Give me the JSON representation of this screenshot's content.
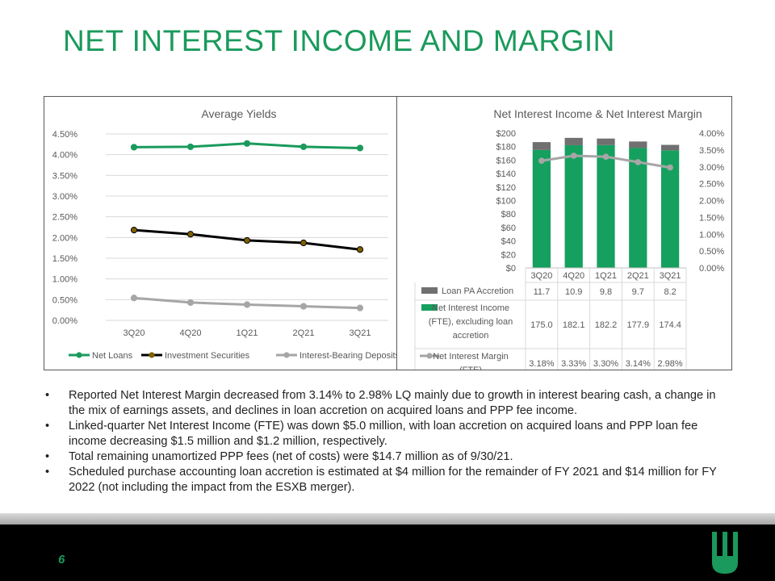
{
  "page": {
    "title": "NET INTEREST INCOME AND MARGIN",
    "page_number": "6"
  },
  "colors": {
    "title_green": "#1a9a5c",
    "net_loans": "#1a9a5c",
    "investment_securities": "#000000",
    "investment_marker": "#7f6000",
    "deposits": "#a6a6a6",
    "bar_green": "#16a05f",
    "bar_gray": "#707070",
    "margin_line": "#a6a6a6"
  },
  "bullets": [
    "Reported Net Interest Margin decreased from 3.14% to 2.98% LQ mainly due to growth in interest bearing cash, a change in the mix of earnings assets, and declines in loan accretion on acquired loans and PPP fee income.",
    "Linked-quarter Net Interest Income (FTE) was down $5.0 million, with loan accretion on acquired loans and PPP loan fee income decreasing $1.5 million and $1.2 million, respectively.",
    "Total remaining unamortized PPP fees (net of costs) were $14.7 million as of 9/30/21.",
    "Scheduled purchase accounting loan accretion is estimated at $4 million for the remainder of FY 2021 and $14 million for FY 2022 (not including the impact from the ESXB merger)."
  ],
  "chart_data": [
    {
      "type": "line",
      "title": "Average Yields",
      "categories": [
        "3Q20",
        "4Q20",
        "1Q21",
        "2Q21",
        "3Q21"
      ],
      "y_ticks": [
        "0.00%",
        "0.50%",
        "1.00%",
        "1.50%",
        "2.00%",
        "2.50%",
        "3.00%",
        "3.50%",
        "4.00%",
        "4.50%"
      ],
      "ylim": [
        0,
        4.5
      ],
      "grid": true,
      "legend": "bottom",
      "series": [
        {
          "name": "Net Loans",
          "values": [
            4.18,
            4.19,
            4.27,
            4.19,
            4.16
          ],
          "color": "#1a9a5c",
          "marker": "#1a9a5c"
        },
        {
          "name": "Investment Securities",
          "values": [
            2.18,
            2.08,
            1.93,
            1.87,
            1.71
          ],
          "color": "#000000",
          "marker": "#7f6000"
        },
        {
          "name": "Interest-Bearing Deposits",
          "values": [
            0.54,
            0.43,
            0.38,
            0.34,
            0.3
          ],
          "color": "#a6a6a6",
          "marker": "#a6a6a6"
        }
      ]
    },
    {
      "type": "bar",
      "stacked": true,
      "title": "Net Interest Income & Net Interest Margin",
      "categories": [
        "3Q20",
        "4Q20",
        "1Q21",
        "2Q21",
        "3Q21"
      ],
      "y_ticks": [
        "$0",
        "$20",
        "$40",
        "$60",
        "$80",
        "$100",
        "$120",
        "$140",
        "$160",
        "$180",
        "$200"
      ],
      "ylim": [
        0,
        200
      ],
      "y2_ticks": [
        "0.00%",
        "0.50%",
        "1.00%",
        "1.50%",
        "2.00%",
        "2.50%",
        "3.00%",
        "3.50%",
        "4.00%"
      ],
      "y2lim": [
        0,
        4.0
      ],
      "legend": "data table",
      "series": [
        {
          "name": "Loan PA Accretion",
          "type": "bar",
          "values": [
            11.7,
            10.9,
            9.8,
            9.7,
            8.2
          ],
          "labels": [
            "11.7",
            "10.9",
            "9.8",
            "9.7",
            "8.2"
          ],
          "color": "#707070"
        },
        {
          "name": "Net Interest Income (FTE), excluding loan accretion",
          "name_lines": [
            "Net Interest Income",
            "(FTE), excluding loan",
            "accretion"
          ],
          "type": "bar",
          "values": [
            175.0,
            182.1,
            182.2,
            177.9,
            174.4
          ],
          "labels": [
            "175.0",
            "182.1",
            "182.2",
            "177.9",
            "174.4"
          ],
          "color": "#16a05f"
        },
        {
          "name": "Net Interest Margin (FTE)",
          "name_lines": [
            "Net Interest Margin",
            "(FTE)"
          ],
          "type": "line",
          "axis": "right",
          "values": [
            3.18,
            3.33,
            3.3,
            3.14,
            2.98
          ],
          "labels": [
            "3.18%",
            "3.33%",
            "3.30%",
            "3.14%",
            "2.98%"
          ],
          "color": "#a6a6a6"
        }
      ]
    }
  ]
}
